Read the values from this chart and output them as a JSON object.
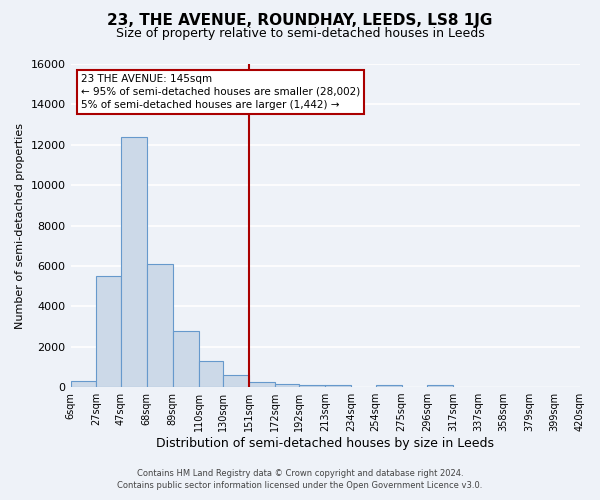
{
  "title": "23, THE AVENUE, ROUNDHAY, LEEDS, LS8 1JG",
  "subtitle": "Size of property relative to semi-detached houses in Leeds",
  "xlabel": "Distribution of semi-detached houses by size in Leeds",
  "ylabel": "Number of semi-detached properties",
  "bin_edges": [
    6,
    27,
    47,
    68,
    89,
    110,
    130,
    151,
    172,
    192,
    213,
    234,
    254,
    275,
    296,
    317,
    337,
    358,
    379,
    399,
    420
  ],
  "bin_counts": [
    300,
    5500,
    12400,
    6100,
    2800,
    1300,
    600,
    250,
    150,
    80,
    120,
    0,
    80,
    0,
    120,
    0,
    0,
    0,
    0,
    0
  ],
  "bar_facecolor": "#ccd9e8",
  "bar_edgecolor": "#6699cc",
  "vline_x": 151,
  "vline_color": "#aa0000",
  "ylim": [
    0,
    16000
  ],
  "yticks": [
    0,
    2000,
    4000,
    6000,
    8000,
    10000,
    12000,
    14000,
    16000
  ],
  "annotation_box_text_line1": "23 THE AVENUE: 145sqm",
  "annotation_box_text_line2": "← 95% of semi-detached houses are smaller (28,002)",
  "annotation_box_text_line3": "5% of semi-detached houses are larger (1,442) →",
  "annotation_box_edgecolor": "#aa0000",
  "annotation_box_facecolor": "white",
  "footer_line1": "Contains HM Land Registry data © Crown copyright and database right 2024.",
  "footer_line2": "Contains public sector information licensed under the Open Government Licence v3.0.",
  "background_color": "#eef2f8",
  "grid_color": "white",
  "tick_labels": [
    "6sqm",
    "27sqm",
    "47sqm",
    "68sqm",
    "89sqm",
    "110sqm",
    "130sqm",
    "151sqm",
    "172sqm",
    "192sqm",
    "213sqm",
    "234sqm",
    "254sqm",
    "275sqm",
    "296sqm",
    "317sqm",
    "337sqm",
    "358sqm",
    "379sqm",
    "399sqm",
    "420sqm"
  ]
}
